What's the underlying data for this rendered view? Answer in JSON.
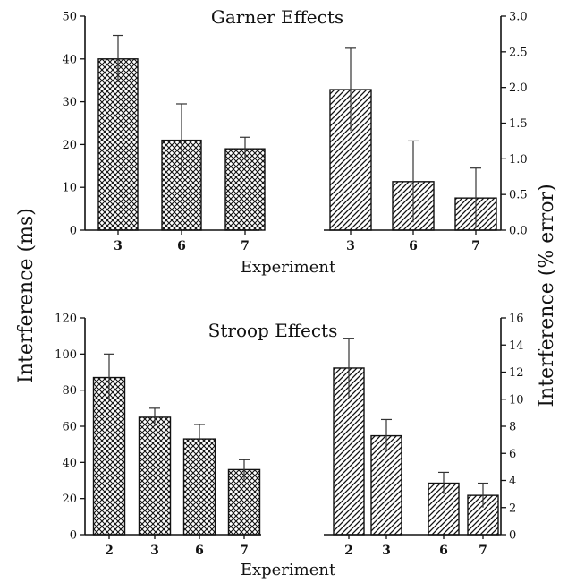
{
  "figure": {
    "ylabel_left": "Interference (ms)",
    "ylabel_right": "Interference (% error)",
    "colors": {
      "ink": "#111111",
      "background": "#ffffff"
    }
  },
  "chart_data": [
    {
      "type": "bar",
      "title": "Garner Effects",
      "xlabel": "Experiment",
      "ylabel": "Interference (ms)",
      "categories": [
        "3",
        "6",
        "7"
      ],
      "values": [
        40,
        21,
        19
      ],
      "errors": [
        5.5,
        8.5,
        2.7
      ],
      "ylim": [
        0,
        50
      ],
      "yticks": [
        0,
        10,
        20,
        30,
        40,
        50
      ],
      "pattern": "crosshatch",
      "axis_side": "left"
    },
    {
      "type": "bar",
      "title": "Garner Effects",
      "xlabel": "Experiment",
      "ylabel": "Interference (% error)",
      "categories": [
        "3",
        "6",
        "7"
      ],
      "values": [
        1.97,
        0.68,
        0.45
      ],
      "errors": [
        0.58,
        0.57,
        0.42
      ],
      "ylim": [
        0,
        3
      ],
      "yticks": [
        0.0,
        0.5,
        1.0,
        1.5,
        2.0,
        2.5,
        3.0
      ],
      "ytick_labels": [
        "0.0",
        "0.5",
        "1.0",
        "1.5",
        "2.0",
        "2.5",
        "3.0"
      ],
      "pattern": "diagonal",
      "axis_side": "right"
    },
    {
      "type": "bar",
      "title": "Stroop Effects",
      "xlabel": "Experiment",
      "ylabel": "Interference (ms)",
      "categories": [
        "2",
        "3",
        "6",
        "7"
      ],
      "values": [
        87,
        65,
        53,
        36
      ],
      "errors": [
        13,
        5,
        8,
        5.5
      ],
      "ylim": [
        0,
        120
      ],
      "yticks": [
        0,
        20,
        40,
        60,
        80,
        100,
        120
      ],
      "pattern": "crosshatch",
      "axis_side": "left"
    },
    {
      "type": "bar",
      "title": "Stroop Effects",
      "xlabel": "Experiment",
      "ylabel": "Interference (% error)",
      "categories": [
        "2",
        "3",
        "6",
        "7"
      ],
      "values": [
        12.3,
        7.3,
        3.8,
        2.9
      ],
      "errors": [
        2.2,
        1.2,
        0.8,
        0.9
      ],
      "ylim": [
        0,
        16
      ],
      "yticks": [
        0,
        2,
        4,
        6,
        8,
        10,
        12,
        14,
        16
      ],
      "pattern": "diagonal",
      "axis_side": "right"
    }
  ]
}
